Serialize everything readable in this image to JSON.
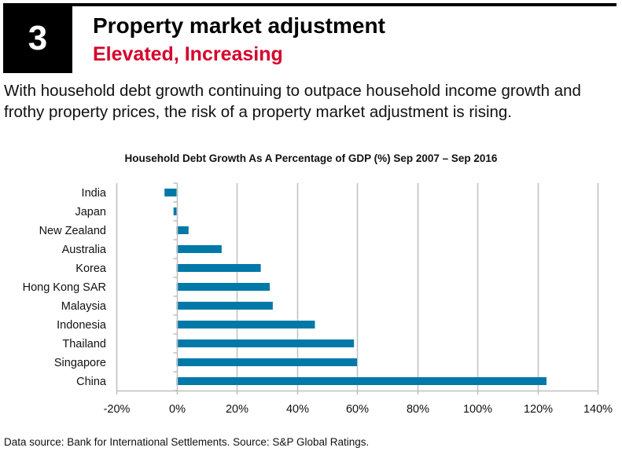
{
  "header": {
    "number": "3",
    "title": "Property market adjustment",
    "subtitle": "Elevated, Increasing",
    "subtitle_color": "#d6002a"
  },
  "intro": "With household debt growth continuing to outpace household income growth and frothy property prices, the risk of a property market adjustment is rising.",
  "chart_data": {
    "type": "bar",
    "orientation": "horizontal",
    "title": "Household Debt Growth As A Percentage of GDP (%) Sep 2007 – Sep 2016",
    "categories": [
      "India",
      "Japan",
      "New Zealand",
      "Australia",
      "Korea",
      "Hong Kong SAR",
      "Malaysia",
      "Indonesia",
      "Thailand",
      "Singapore",
      "China"
    ],
    "values": [
      -4,
      -1,
      4,
      15,
      28,
      31,
      32,
      46,
      59,
      60,
      123
    ],
    "xlabel": "",
    "ylabel": "",
    "xlim": [
      -20,
      140
    ],
    "xticks": [
      -20,
      0,
      20,
      40,
      60,
      80,
      100,
      120,
      140
    ],
    "xtick_labels": [
      "-20%",
      "0%",
      "20%",
      "40%",
      "60%",
      "80%",
      "100%",
      "120%",
      "140%"
    ],
    "grid": "vertical",
    "legend": "none",
    "bar_color": "#0079a8"
  },
  "footer": {
    "source": "Data source: Bank for International Settlements. Source: S&P Global Ratings."
  }
}
